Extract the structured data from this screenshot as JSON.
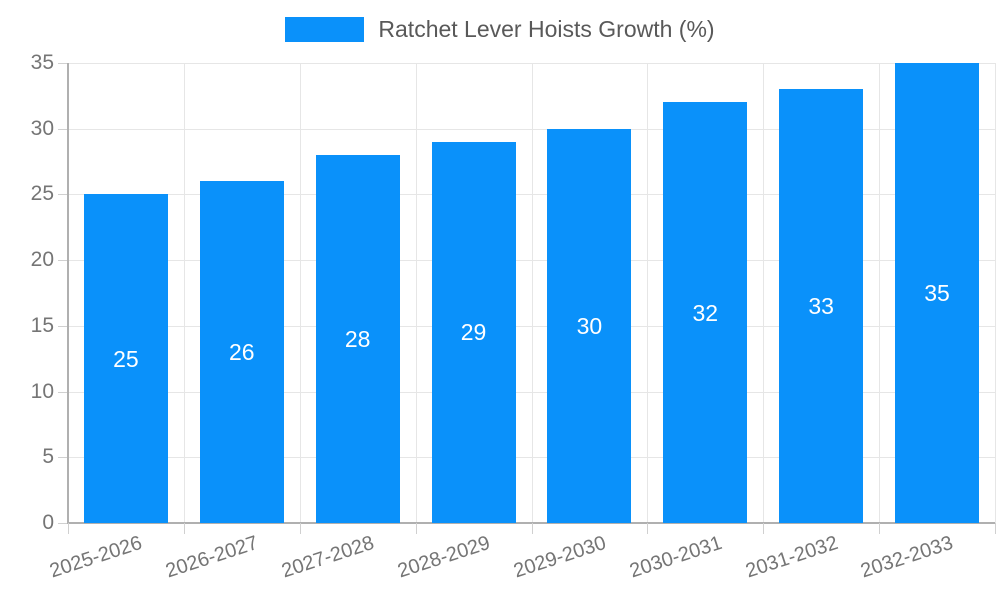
{
  "chart_data": {
    "type": "bar",
    "title": "Ratchet Lever Hoists Growth (%)",
    "legend": [
      "Ratchet Lever Hoists Growth (%)"
    ],
    "legend_position": "top",
    "categories": [
      "2025-2026",
      "2026-2027",
      "2027-2028",
      "2028-2029",
      "2029-2030",
      "2030-2031",
      "2031-2032",
      "2032-2033"
    ],
    "values": [
      25,
      26,
      28,
      29,
      30,
      32,
      33,
      35
    ],
    "bar_value_labels": [
      "25",
      "26",
      "28",
      "29",
      "30",
      "32",
      "33",
      "35"
    ],
    "xlabel": "",
    "ylabel": "",
    "ylim": [
      0,
      35
    ],
    "ytick_step": 5,
    "yticks": [
      0,
      5,
      10,
      15,
      20,
      25,
      30,
      35
    ],
    "grid": true,
    "bar_labels_visible": true,
    "colors": {
      "bar": "#0a91fa",
      "bar_label": "#ffffff",
      "axis_line": "#b0b0b0",
      "gridline": "#e6e6e6",
      "tick": "#d0d0d0",
      "tick_label": "#757575",
      "legend_text": "#595959",
      "background": "#ffffff"
    }
  }
}
